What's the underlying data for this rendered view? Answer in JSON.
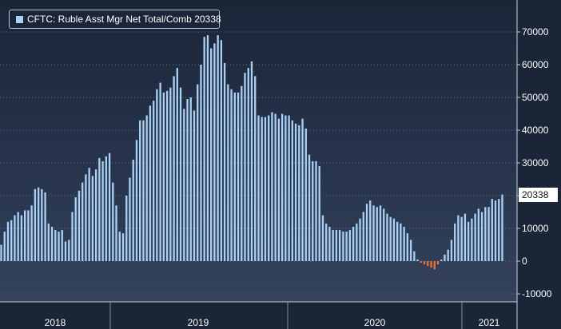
{
  "chart_data": {
    "type": "bar",
    "legend_label": "CFTC: Ruble Asst Mgr Net Total/Comb",
    "legend_value": "20338",
    "last_value_label": "20338",
    "y_ticks": [
      "70000",
      "60000",
      "50000",
      "40000",
      "30000",
      "20000",
      "10000",
      "0",
      "-10000"
    ],
    "ylim": [
      -12000,
      79000
    ],
    "x_labels": [
      "2018",
      "2019",
      "2020",
      "2021"
    ],
    "legend_position": "top-left",
    "positive_color": "#a9d0f5",
    "negative_color": "#e8733a",
    "values": [
      5000,
      9000,
      12000,
      12500,
      14000,
      15000,
      14000,
      15500,
      15500,
      17000,
      22000,
      22500,
      22000,
      21000,
      11500,
      10500,
      9500,
      9000,
      9500,
      6000,
      6500,
      15000,
      19500,
      21500,
      24000,
      26500,
      28500,
      26000,
      28000,
      31500,
      30500,
      32000,
      33000,
      24000,
      17000,
      9000,
      8500,
      20000,
      25500,
      31000,
      37000,
      43000,
      43000,
      44500,
      47500,
      49000,
      52500,
      54500,
      51500,
      52000,
      53000,
      56500,
      59000,
      53000,
      46500,
      49500,
      50000,
      46000,
      54000,
      60000,
      68500,
      69000,
      65000,
      66500,
      69000,
      67500,
      60500,
      54000,
      52500,
      51500,
      51500,
      53500,
      57500,
      59000,
      61000,
      56500,
      44500,
      44000,
      44000,
      44500,
      45500,
      45000,
      43500,
      45000,
      44500,
      44500,
      43000,
      42000,
      41500,
      43500,
      40500,
      32500,
      30500,
      30500,
      29000,
      14000,
      11500,
      10500,
      9500,
      9500,
      9500,
      9000,
      9000,
      9500,
      10500,
      11500,
      13000,
      15000,
      17500,
      18500,
      17000,
      16500,
      17000,
      16000,
      14500,
      13500,
      13000,
      12000,
      11500,
      10500,
      8500,
      6500,
      3000,
      500,
      -500,
      -1000,
      -1500,
      -2000,
      -2500,
      -1000,
      500,
      2000,
      3500,
      6500,
      11500,
      14000,
      13500,
      14500,
      12000,
      13000,
      14500,
      16000,
      15000,
      16500,
      16500,
      19000,
      18500,
      19000,
      20338
    ]
  }
}
